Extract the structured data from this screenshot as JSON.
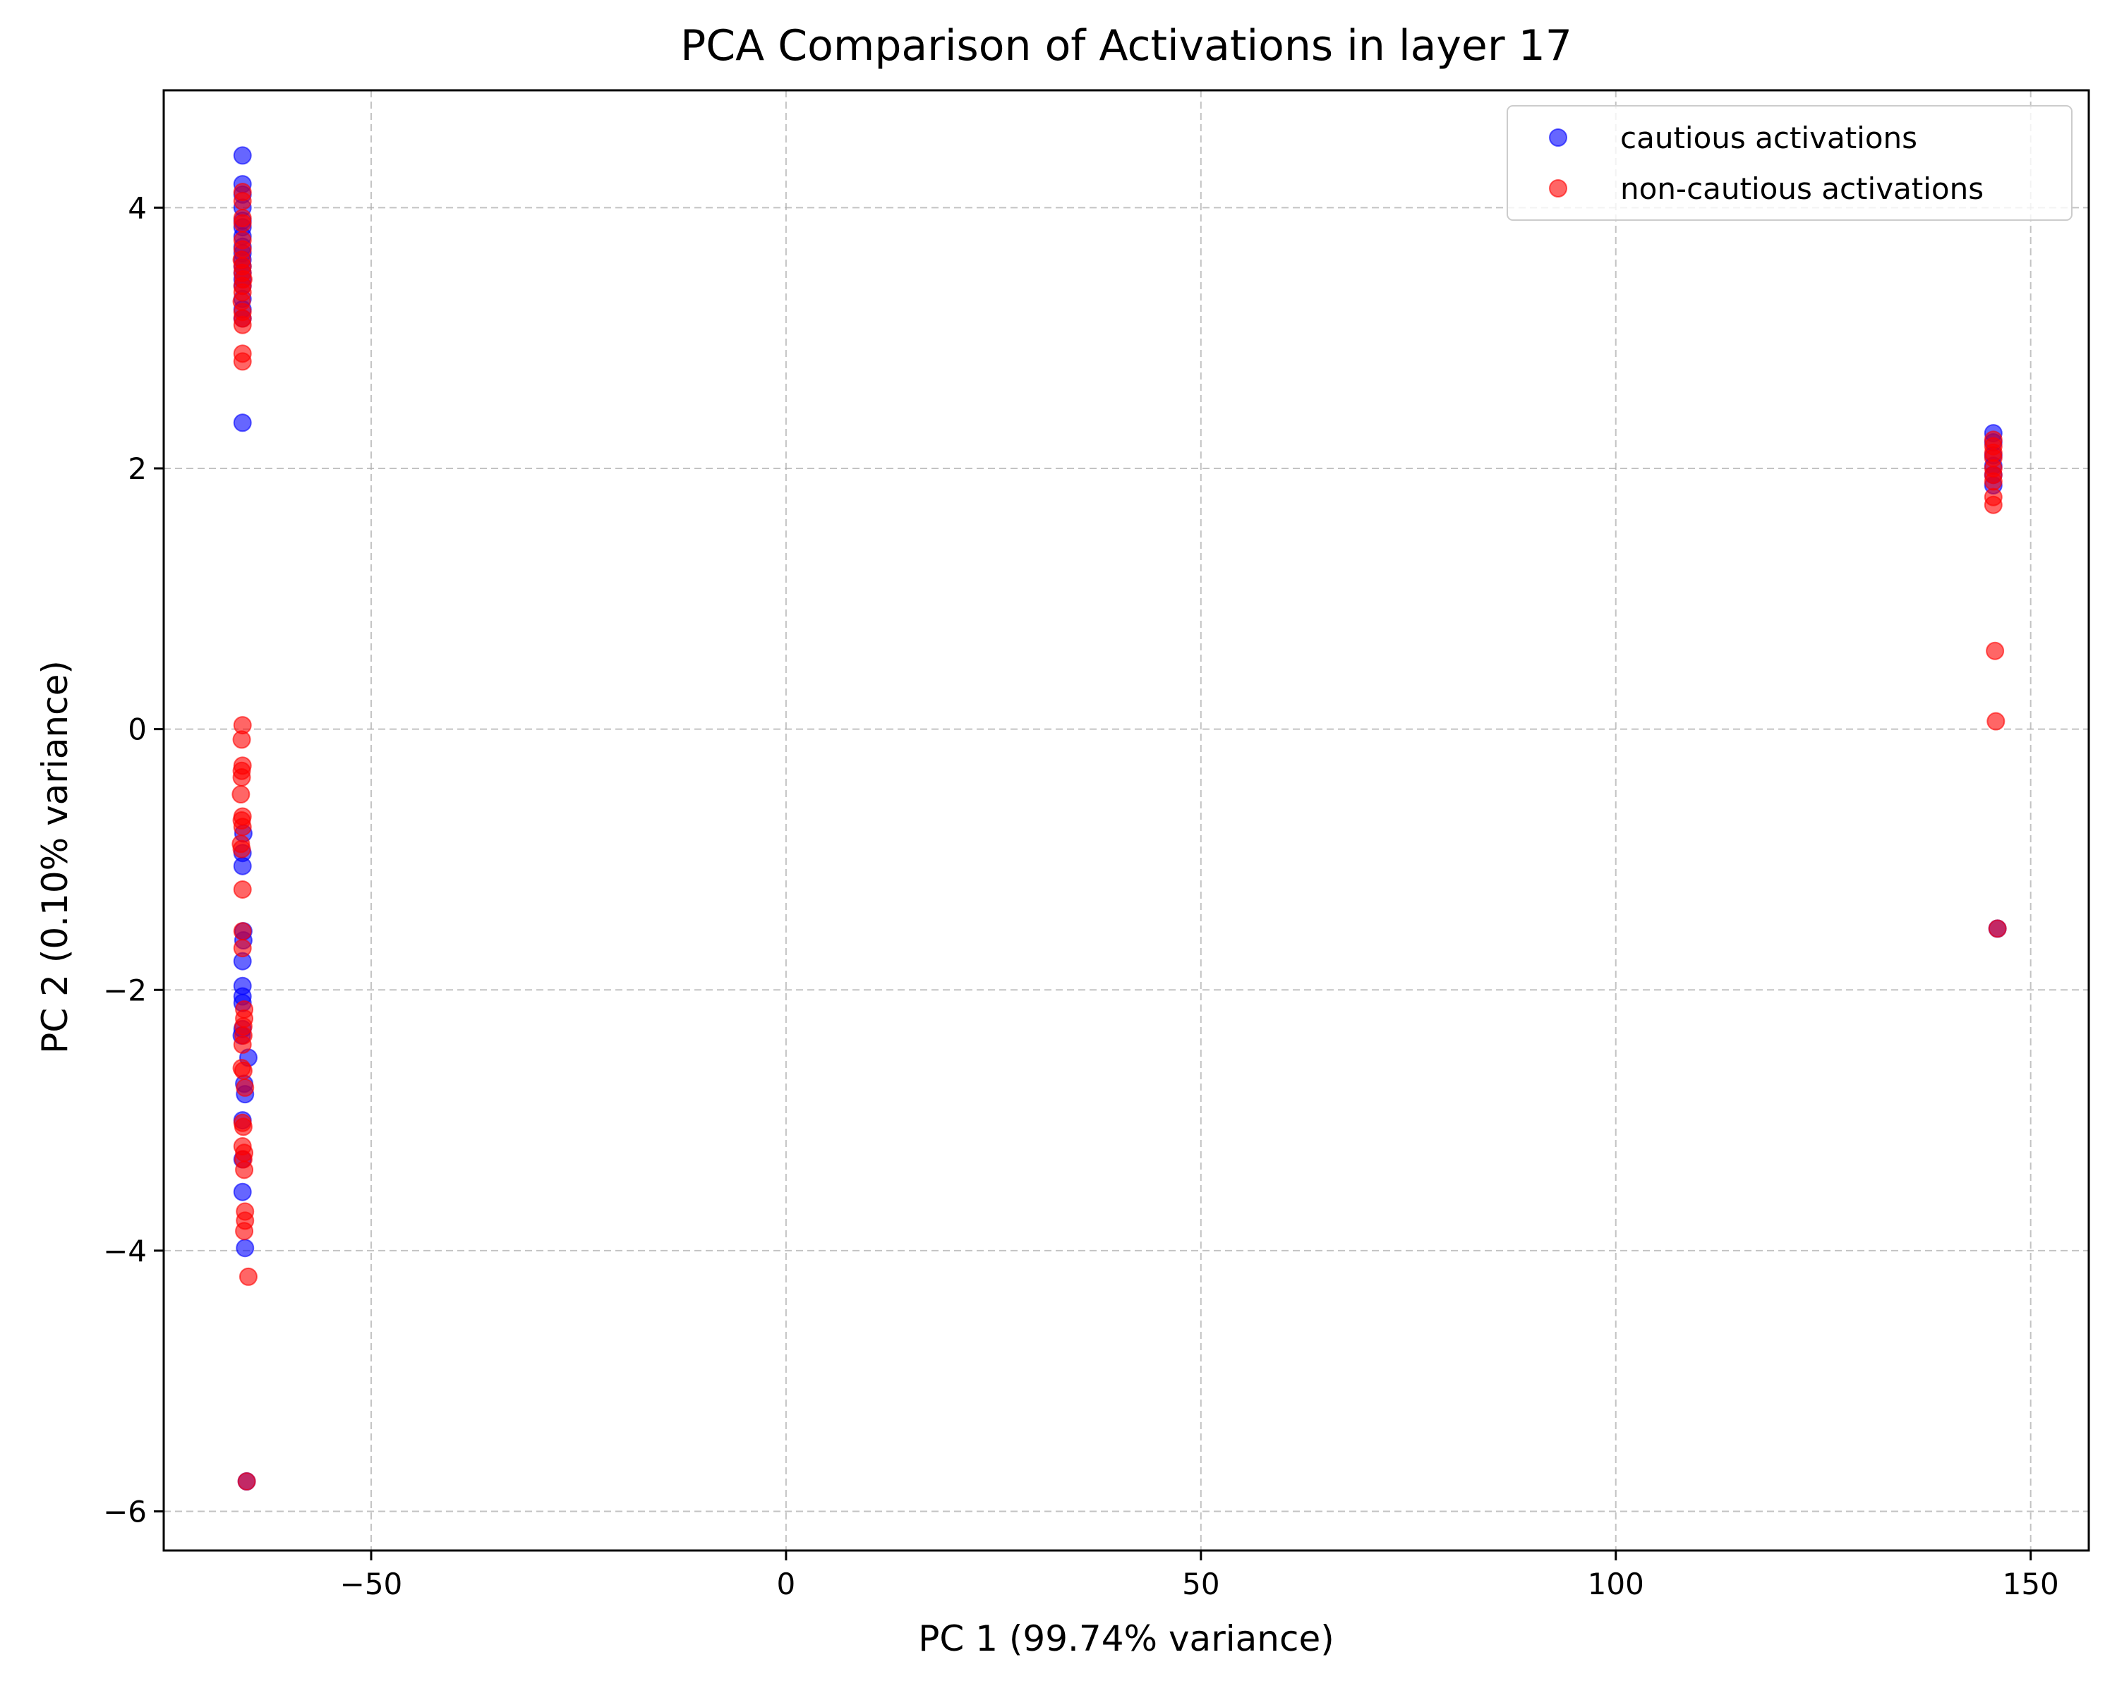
{
  "chart_data": {
    "type": "scatter",
    "title": "PCA Comparison of Activations in layer 17",
    "xlabel": "PC 1 (99.74% variance)",
    "ylabel": "PC 2 (0.10% variance)",
    "xlim": [
      -75,
      157
    ],
    "ylim": [
      -6.3,
      4.9
    ],
    "xticks": [
      -50,
      0,
      50,
      100,
      150
    ],
    "xtick_labels": [
      "−50",
      "0",
      "50",
      "100",
      "150"
    ],
    "yticks": [
      -6,
      -4,
      -2,
      0,
      2,
      4
    ],
    "ytick_labels": [
      "−6",
      "−4",
      "−2",
      "0",
      "2",
      "4"
    ],
    "grid": true,
    "legend_position": "top-right",
    "series": [
      {
        "name": "cautious activations",
        "color": "#0000ff",
        "points": [
          [
            -65.5,
            4.4
          ],
          [
            -65.5,
            4.18
          ],
          [
            -65.5,
            4.1
          ],
          [
            -65.5,
            4.0
          ],
          [
            -65.5,
            3.9
          ],
          [
            -65.5,
            3.85
          ],
          [
            -65.5,
            3.78
          ],
          [
            -65.5,
            3.7
          ],
          [
            -65.5,
            3.65
          ],
          [
            -65.5,
            3.6
          ],
          [
            -65.5,
            3.55
          ],
          [
            -65.5,
            3.5
          ],
          [
            -65.5,
            3.45
          ],
          [
            -65.5,
            3.4
          ],
          [
            -65.5,
            3.3
          ],
          [
            -65.5,
            3.22
          ],
          [
            -65.5,
            3.15
          ],
          [
            -65.5,
            2.35
          ],
          [
            -65.4,
            -0.8
          ],
          [
            -65.5,
            -0.95
          ],
          [
            -65.5,
            -1.05
          ],
          [
            -65.4,
            -1.55
          ],
          [
            -65.4,
            -1.62
          ],
          [
            -65.5,
            -1.78
          ],
          [
            -65.5,
            -1.97
          ],
          [
            -65.5,
            -2.05
          ],
          [
            -65.5,
            -2.1
          ],
          [
            -65.5,
            -2.3
          ],
          [
            -65.6,
            -2.35
          ],
          [
            -64.8,
            -2.52
          ],
          [
            -65.3,
            -2.72
          ],
          [
            -65.2,
            -2.8
          ],
          [
            -65.5,
            -3.0
          ],
          [
            -65.5,
            -3.3
          ],
          [
            -65.5,
            -3.55
          ],
          [
            -65.2,
            -3.98
          ],
          [
            -65.0,
            -5.77
          ],
          [
            145.5,
            2.27
          ],
          [
            145.5,
            2.2
          ],
          [
            145.5,
            2.1
          ],
          [
            145.5,
            2.02
          ],
          [
            145.5,
            1.95
          ],
          [
            145.5,
            1.87
          ],
          [
            146.0,
            -1.53
          ]
        ]
      },
      {
        "name": "non-cautious activations",
        "color": "#ff0000",
        "points": [
          [
            -65.5,
            4.12
          ],
          [
            -65.5,
            4.05
          ],
          [
            -65.5,
            3.92
          ],
          [
            -65.5,
            3.88
          ],
          [
            -65.5,
            3.75
          ],
          [
            -65.5,
            3.68
          ],
          [
            -65.6,
            3.6
          ],
          [
            -65.5,
            3.55
          ],
          [
            -65.5,
            3.5
          ],
          [
            -65.4,
            3.45
          ],
          [
            -65.5,
            3.4
          ],
          [
            -65.5,
            3.35
          ],
          [
            -65.6,
            3.28
          ],
          [
            -65.5,
            3.2
          ],
          [
            -65.5,
            3.15
          ],
          [
            -65.5,
            3.1
          ],
          [
            -65.5,
            2.88
          ],
          [
            -65.5,
            2.82
          ],
          [
            -65.5,
            0.03
          ],
          [
            -65.6,
            -0.08
          ],
          [
            -65.5,
            -0.28
          ],
          [
            -65.6,
            -0.32
          ],
          [
            -65.6,
            -0.37
          ],
          [
            -65.7,
            -0.5
          ],
          [
            -65.5,
            -0.67
          ],
          [
            -65.6,
            -0.7
          ],
          [
            -65.5,
            -0.75
          ],
          [
            -65.7,
            -0.88
          ],
          [
            -65.6,
            -0.92
          ],
          [
            -65.5,
            -1.23
          ],
          [
            -65.5,
            -1.55
          ],
          [
            -65.5,
            -1.68
          ],
          [
            -65.3,
            -2.15
          ],
          [
            -65.3,
            -2.22
          ],
          [
            -65.4,
            -2.28
          ],
          [
            -65.4,
            -2.35
          ],
          [
            -65.5,
            -2.42
          ],
          [
            -65.6,
            -2.6
          ],
          [
            -65.4,
            -2.62
          ],
          [
            -65.2,
            -2.75
          ],
          [
            -65.5,
            -3.02
          ],
          [
            -65.4,
            -3.05
          ],
          [
            -65.5,
            -3.2
          ],
          [
            -65.3,
            -3.25
          ],
          [
            -65.4,
            -3.3
          ],
          [
            -65.3,
            -3.38
          ],
          [
            -65.2,
            -3.7
          ],
          [
            -65.2,
            -3.77
          ],
          [
            -65.3,
            -3.85
          ],
          [
            -64.8,
            -4.2
          ],
          [
            -65.0,
            -5.77
          ],
          [
            145.5,
            2.22
          ],
          [
            145.5,
            2.17
          ],
          [
            145.5,
            2.12
          ],
          [
            145.5,
            2.08
          ],
          [
            145.5,
            2.0
          ],
          [
            145.5,
            1.95
          ],
          [
            145.5,
            1.9
          ],
          [
            145.5,
            1.78
          ],
          [
            145.5,
            1.72
          ],
          [
            145.7,
            0.6
          ],
          [
            145.8,
            0.06
          ],
          [
            146.0,
            -1.53
          ]
        ]
      }
    ]
  }
}
